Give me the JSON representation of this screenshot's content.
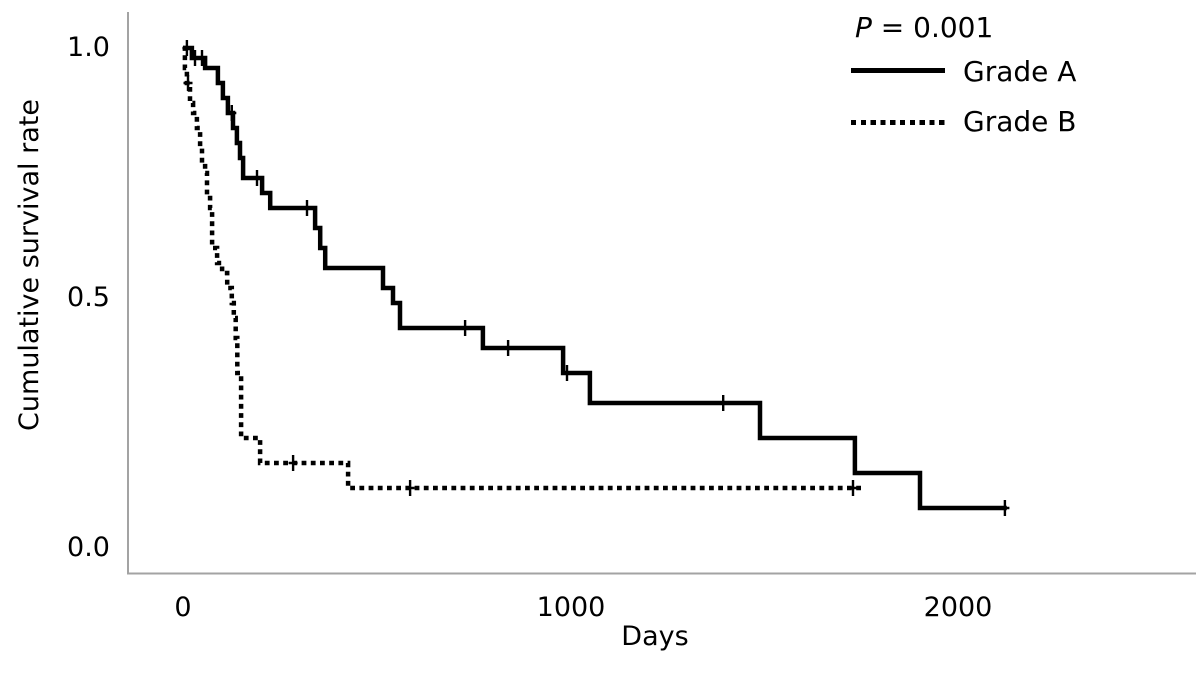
{
  "figure": {
    "background": "#ffffff",
    "p_symbol": "P",
    "p_rest": " = 0.001"
  },
  "chart_data": {
    "type": "line",
    "subtype": "kaplan-meier-step",
    "annotation": "P = 0.001",
    "xlabel": "Days",
    "ylabel": "Cumulative survival rate",
    "x_ticks": [
      "0",
      "1000",
      "2000"
    ],
    "y_ticks": [
      "0.0",
      "0.5",
      "1.0"
    ],
    "xlim": [
      0,
      2200
    ],
    "ylim": [
      0,
      1.05
    ],
    "grid": false,
    "legend_position": "top-right",
    "line_color": "#000000",
    "axis_color": "#a3a3a3",
    "series": [
      {
        "name": "Grade A",
        "style": "solid",
        "step_t": [
          0,
          23,
          57,
          90,
          103,
          116,
          129,
          139,
          147,
          155,
          204,
          225,
          341,
          354,
          367,
          516,
          542,
          560,
          774,
          981,
          1050,
          1489,
          1734,
          1902
        ],
        "step_s": [
          1.0,
          0.98,
          0.96,
          0.93,
          0.9,
          0.87,
          0.84,
          0.81,
          0.78,
          0.74,
          0.71,
          0.68,
          0.64,
          0.6,
          0.56,
          0.52,
          0.49,
          0.44,
          0.4,
          0.35,
          0.29,
          0.22,
          0.15,
          0.08
        ],
        "end_t": 2126,
        "censor_t": [
          10,
          31,
          49,
          126,
          191,
          320,
          728,
          839,
          991,
          1394,
          2121
        ],
        "censor_s": [
          1.0,
          0.98,
          0.98,
          0.87,
          0.74,
          0.68,
          0.44,
          0.4,
          0.35,
          0.29,
          0.08
        ]
      },
      {
        "name": "Grade B",
        "style": "dotted",
        "step_t": [
          0,
          5,
          10,
          18,
          26,
          36,
          44,
          49,
          57,
          62,
          70,
          75,
          88,
          101,
          114,
          126,
          131,
          136,
          140,
          150,
          199,
          426
        ],
        "step_s": [
          1.0,
          0.96,
          0.93,
          0.89,
          0.87,
          0.84,
          0.8,
          0.77,
          0.75,
          0.7,
          0.68,
          0.6,
          0.57,
          0.55,
          0.52,
          0.49,
          0.46,
          0.42,
          0.35,
          0.22,
          0.17,
          0.12
        ],
        "end_t": 1750,
        "censor_t": [
          13,
          284,
          586,
          1729
        ],
        "censor_s": [
          0.93,
          0.17,
          0.12,
          0.12
        ]
      }
    ]
  }
}
